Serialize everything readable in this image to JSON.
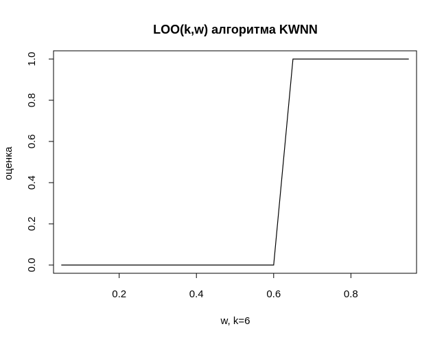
{
  "chart_data": {
    "type": "line",
    "title": "LOO(k,w) алгоритма KWNN",
    "xlabel": "w,  k=6",
    "ylabel": "оценка",
    "xlim": [
      0.03,
      0.97
    ],
    "ylim": [
      -0.04,
      1.04
    ],
    "x_ticks": [
      0.2,
      0.4,
      0.6,
      0.8
    ],
    "x_tick_labels": [
      "0.2",
      "0.4",
      "0.6",
      "0.8"
    ],
    "y_ticks": [
      0.0,
      0.2,
      0.4,
      0.6,
      0.8,
      1.0
    ],
    "y_tick_labels": [
      "0.0",
      "0.2",
      "0.4",
      "0.6",
      "0.8",
      "1.0"
    ],
    "grid": false,
    "series": [
      {
        "x": [
          0.05,
          0.6,
          0.65,
          0.95
        ],
        "y": [
          0.0,
          0.0,
          1.0,
          1.0
        ],
        "color": "#000000"
      }
    ]
  }
}
